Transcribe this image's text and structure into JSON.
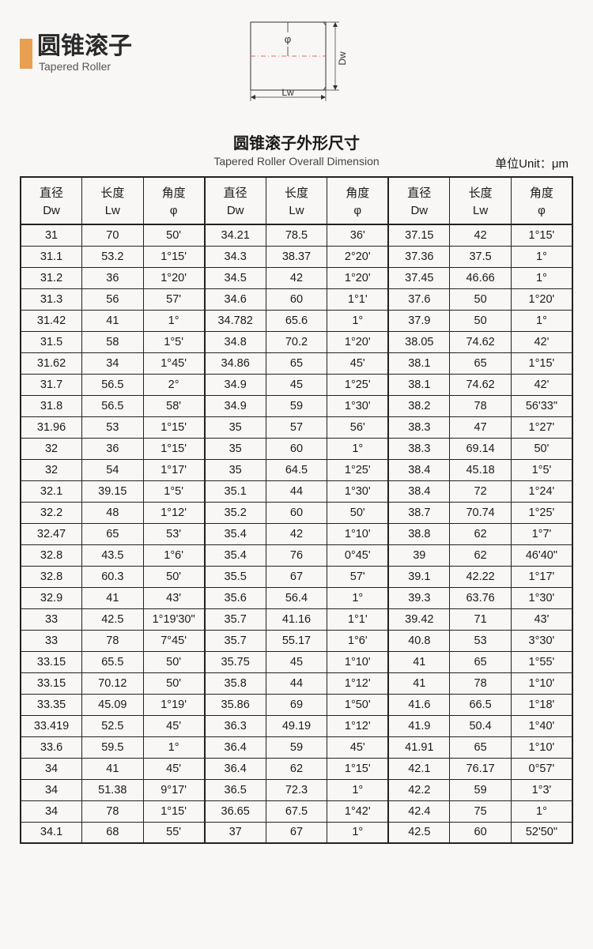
{
  "header": {
    "title_cn": "圆锥滚子",
    "title_en": "Tapered Roller",
    "accent_color": "#e8a050"
  },
  "diagram": {
    "phi": "φ",
    "dw": "Dw",
    "lw": "Lw"
  },
  "table_title": {
    "cn": "圆锥滚子外形尺寸",
    "en": "Tapered Roller Overall Dimension"
  },
  "unit_label": "单位Unit：μm",
  "columns": [
    {
      "cn": "直径",
      "sym": "Dw"
    },
    {
      "cn": "长度",
      "sym": "Lw"
    },
    {
      "cn": "角度",
      "sym": "φ"
    },
    {
      "cn": "直径",
      "sym": "Dw"
    },
    {
      "cn": "长度",
      "sym": "Lw"
    },
    {
      "cn": "角度",
      "sym": "φ"
    },
    {
      "cn": "直径",
      "sym": "Dw"
    },
    {
      "cn": "长度",
      "sym": "Lw"
    },
    {
      "cn": "角度",
      "sym": "φ"
    }
  ],
  "rows": [
    [
      "31",
      "70",
      "50'",
      "34.21",
      "78.5",
      "36'",
      "37.15",
      "42",
      "1°15'"
    ],
    [
      "31.1",
      "53.2",
      "1°15'",
      "34.3",
      "38.37",
      "2°20'",
      "37.36",
      "37.5",
      "1°"
    ],
    [
      "31.2",
      "36",
      "1°20'",
      "34.5",
      "42",
      "1°20'",
      "37.45",
      "46.66",
      "1°"
    ],
    [
      "31.3",
      "56",
      "57'",
      "34.6",
      "60",
      "1°1'",
      "37.6",
      "50",
      "1°20'"
    ],
    [
      "31.42",
      "41",
      "1°",
      "34.782",
      "65.6",
      "1°",
      "37.9",
      "50",
      "1°"
    ],
    [
      "31.5",
      "58",
      "1°5'",
      "34.8",
      "70.2",
      "1°20'",
      "38.05",
      "74.62",
      "42'"
    ],
    [
      "31.62",
      "34",
      "1°45'",
      "34.86",
      "65",
      "45'",
      "38.1",
      "65",
      "1°15'"
    ],
    [
      "31.7",
      "56.5",
      "2°",
      "34.9",
      "45",
      "1°25'",
      "38.1",
      "74.62",
      "42'"
    ],
    [
      "31.8",
      "56.5",
      "58'",
      "34.9",
      "59",
      "1°30'",
      "38.2",
      "78",
      "56'33\""
    ],
    [
      "31.96",
      "53",
      "1°15'",
      "35",
      "57",
      "56'",
      "38.3",
      "47",
      "1°27'"
    ],
    [
      "32",
      "36",
      "1°15'",
      "35",
      "60",
      "1°",
      "38.3",
      "69.14",
      "50'"
    ],
    [
      "32",
      "54",
      "1°17'",
      "35",
      "64.5",
      "1°25'",
      "38.4",
      "45.18",
      "1°5'"
    ],
    [
      "32.1",
      "39.15",
      "1°5'",
      "35.1",
      "44",
      "1°30'",
      "38.4",
      "72",
      "1°24'"
    ],
    [
      "32.2",
      "48",
      "1°12'",
      "35.2",
      "60",
      "50'",
      "38.7",
      "70.74",
      "1°25'"
    ],
    [
      "32.47",
      "65",
      "53'",
      "35.4",
      "42",
      "1°10'",
      "38.8",
      "62",
      "1°7'"
    ],
    [
      "32.8",
      "43.5",
      "1°6'",
      "35.4",
      "76",
      "0°45'",
      "39",
      "62",
      "46'40\""
    ],
    [
      "32.8",
      "60.3",
      "50'",
      "35.5",
      "67",
      "57'",
      "39.1",
      "42.22",
      "1°17'"
    ],
    [
      "32.9",
      "41",
      "43'",
      "35.6",
      "56.4",
      "1°",
      "39.3",
      "63.76",
      "1°30'"
    ],
    [
      "33",
      "42.5",
      "1°19'30\"",
      "35.7",
      "41.16",
      "1°1'",
      "39.42",
      "71",
      "43'"
    ],
    [
      "33",
      "78",
      "7°45'",
      "35.7",
      "55.17",
      "1°6'",
      "40.8",
      "53",
      "3°30'"
    ],
    [
      "33.15",
      "65.5",
      "50'",
      "35.75",
      "45",
      "1°10'",
      "41",
      "65",
      "1°55'"
    ],
    [
      "33.15",
      "70.12",
      "50'",
      "35.8",
      "44",
      "1°12'",
      "41",
      "78",
      "1°10'"
    ],
    [
      "33.35",
      "45.09",
      "1°19'",
      "35.86",
      "69",
      "1°50'",
      "41.6",
      "66.5",
      "1°18'"
    ],
    [
      "33.419",
      "52.5",
      "45'",
      "36.3",
      "49.19",
      "1°12'",
      "41.9",
      "50.4",
      "1°40'"
    ],
    [
      "33.6",
      "59.5",
      "1°",
      "36.4",
      "59",
      "45'",
      "41.91",
      "65",
      "1°10'"
    ],
    [
      "34",
      "41",
      "45'",
      "36.4",
      "62",
      "1°15'",
      "42.1",
      "76.17",
      "0°57'"
    ],
    [
      "34",
      "51.38",
      "9°17'",
      "36.5",
      "72.3",
      "1°",
      "42.2",
      "59",
      "1°3'"
    ],
    [
      "34",
      "78",
      "1°15'",
      "36.65",
      "67.5",
      "1°42'",
      "42.4",
      "75",
      "1°"
    ],
    [
      "34.1",
      "68",
      "55'",
      "37",
      "67",
      "1°",
      "42.5",
      "60",
      "52'50\""
    ]
  ]
}
